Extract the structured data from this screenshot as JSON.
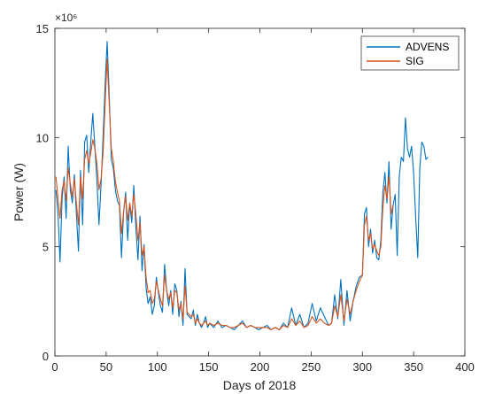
{
  "chart_data": {
    "type": "line",
    "title": "",
    "xlabel": "Days of 2018",
    "ylabel": "Power (W)",
    "y_multiplier_label": "×10⁶",
    "xlim": [
      0,
      400
    ],
    "ylim": [
      0,
      15
    ],
    "xticks": [
      0,
      50,
      100,
      150,
      200,
      250,
      300,
      350,
      400
    ],
    "yticks": [
      0,
      5,
      10,
      15
    ],
    "grid": false,
    "legend": {
      "position": "top-right"
    },
    "colors": {
      "ADVENS": "#0072BD",
      "SIG": "#D95319"
    },
    "series": [
      {
        "name": "ADVENS",
        "x": [
          1,
          3,
          5,
          7,
          9,
          11,
          13,
          15,
          17,
          19,
          21,
          23,
          25,
          27,
          29,
          31,
          33,
          35,
          37,
          39,
          41,
          43,
          45,
          47,
          49,
          51,
          53,
          55,
          57,
          59,
          61,
          63,
          65,
          67,
          69,
          71,
          73,
          75,
          77,
          79,
          81,
          83,
          85,
          87,
          89,
          91,
          93,
          95,
          97,
          99,
          101,
          103,
          105,
          107,
          109,
          111,
          113,
          115,
          117,
          119,
          121,
          123,
          125,
          127,
          129,
          131,
          133,
          135,
          137,
          139,
          141,
          143,
          145,
          147,
          149,
          151,
          155,
          159,
          163,
          167,
          171,
          175,
          179,
          183,
          187,
          191,
          195,
          199,
          203,
          207,
          211,
          215,
          219,
          223,
          227,
          231,
          235,
          239,
          243,
          247,
          251,
          255,
          259,
          263,
          267,
          270,
          273,
          276,
          279,
          282,
          285,
          288,
          291,
          294,
          297,
          300,
          302,
          304,
          306,
          308,
          310,
          312,
          314,
          316,
          318,
          320,
          322,
          324,
          326,
          328,
          330,
          332,
          334,
          336,
          338,
          340,
          342,
          344,
          346,
          348,
          350,
          352,
          354,
          356,
          358,
          360,
          362,
          364
        ],
        "values": [
          7.6,
          6.5,
          4.3,
          7.2,
          8.2,
          6.3,
          9.6,
          7.6,
          7.0,
          8.3,
          6.5,
          4.8,
          8.5,
          6.0,
          9.8,
          10.1,
          8.4,
          9.8,
          11.1,
          9.6,
          8.0,
          6.0,
          7.8,
          10.0,
          12.4,
          14.4,
          12.0,
          9.0,
          8.6,
          7.6,
          7.1,
          6.9,
          4.5,
          6.6,
          7.5,
          5.3,
          7.0,
          6.1,
          7.8,
          5.9,
          4.4,
          6.4,
          3.9,
          5.1,
          3.1,
          2.4,
          2.7,
          1.9,
          2.3,
          3.6,
          2.9,
          2.3,
          2.0,
          4.2,
          3.0,
          2.3,
          3.0,
          1.9,
          3.3,
          3.0,
          1.8,
          2.5,
          1.4,
          4.0,
          1.9,
          1.8,
          1.7,
          2.1,
          1.4,
          1.9,
          1.5,
          1.3,
          1.5,
          1.8,
          1.3,
          1.5,
          1.3,
          1.6,
          1.3,
          1.4,
          1.3,
          1.2,
          1.4,
          1.6,
          1.3,
          1.4,
          1.3,
          1.2,
          1.3,
          1.4,
          1.2,
          1.3,
          1.2,
          1.5,
          1.3,
          2.2,
          1.4,
          1.9,
          1.3,
          1.5,
          2.4,
          1.6,
          2.2,
          1.8,
          1.4,
          1.5,
          2.8,
          1.7,
          3.5,
          1.4,
          3.0,
          1.6,
          2.5,
          3.2,
          3.6,
          3.7,
          6.5,
          6.8,
          5.0,
          5.8,
          4.7,
          5.3,
          4.5,
          4.4,
          5.3,
          7.5,
          8.4,
          7.0,
          8.9,
          5.8,
          6.9,
          7.4,
          4.6,
          8.2,
          9.1,
          8.9,
          10.9,
          9.5,
          9.1,
          9.6,
          8.4,
          6.4,
          4.5,
          8.6,
          9.8,
          9.6,
          9.0,
          9.1
        ]
      },
      {
        "name": "SIG",
        "x": [
          1,
          3,
          5,
          7,
          9,
          11,
          13,
          15,
          17,
          19,
          21,
          23,
          25,
          27,
          29,
          31,
          33,
          35,
          37,
          39,
          41,
          43,
          45,
          47,
          49,
          51,
          53,
          55,
          57,
          59,
          61,
          63,
          65,
          67,
          69,
          71,
          73,
          75,
          77,
          79,
          81,
          83,
          85,
          87,
          89,
          91,
          93,
          95,
          97,
          99,
          101,
          103,
          105,
          107,
          109,
          111,
          113,
          115,
          117,
          119,
          121,
          123,
          125,
          127,
          129,
          131,
          133,
          135,
          137,
          139,
          141,
          143,
          145,
          147,
          149,
          151,
          155,
          159,
          163,
          167,
          171,
          175,
          179,
          183,
          187,
          191,
          195,
          199,
          203,
          207,
          211,
          215,
          219,
          223,
          227,
          231,
          235,
          239,
          243,
          247,
          251,
          255,
          259,
          263,
          267,
          270,
          273,
          276,
          279,
          282,
          285,
          288,
          291,
          294,
          297,
          300,
          302,
          304,
          306,
          308,
          310,
          312,
          314,
          316,
          318,
          320,
          322,
          324,
          326,
          328,
          330
        ],
        "values": [
          8.2,
          7.2,
          6.3,
          7.6,
          8.0,
          7.1,
          8.6,
          7.9,
          7.3,
          8.1,
          7.0,
          6.0,
          8.2,
          7.2,
          9.0,
          9.4,
          8.8,
          9.3,
          9.9,
          9.5,
          8.8,
          7.6,
          8.1,
          9.3,
          11.5,
          13.6,
          11.6,
          9.5,
          8.9,
          8.0,
          7.5,
          7.1,
          5.6,
          6.6,
          7.3,
          6.2,
          7.0,
          6.4,
          7.4,
          6.5,
          5.3,
          6.1,
          4.6,
          5.0,
          3.6,
          2.9,
          3.0,
          2.4,
          2.6,
          3.4,
          3.0,
          2.6,
          2.3,
          3.7,
          3.0,
          2.6,
          2.9,
          2.2,
          3.0,
          2.9,
          2.1,
          2.4,
          1.7,
          3.2,
          2.0,
          1.9,
          1.8,
          1.9,
          1.5,
          1.7,
          1.5,
          1.4,
          1.5,
          1.6,
          1.4,
          1.5,
          1.4,
          1.5,
          1.4,
          1.4,
          1.3,
          1.3,
          1.4,
          1.5,
          1.3,
          1.4,
          1.3,
          1.3,
          1.3,
          1.3,
          1.2,
          1.3,
          1.2,
          1.4,
          1.3,
          1.7,
          1.4,
          1.6,
          1.3,
          1.4,
          1.8,
          1.5,
          1.7,
          1.5,
          1.4,
          1.5,
          2.3,
          1.8,
          2.8,
          1.6,
          2.6,
          1.9,
          2.5,
          3.0,
          3.4,
          3.7,
          6.0,
          6.4,
          5.3,
          5.6,
          4.9,
          5.1,
          4.8,
          4.6,
          5.0,
          6.8,
          7.8,
          7.2,
          8.2,
          6.5,
          6.9
        ]
      }
    ]
  }
}
